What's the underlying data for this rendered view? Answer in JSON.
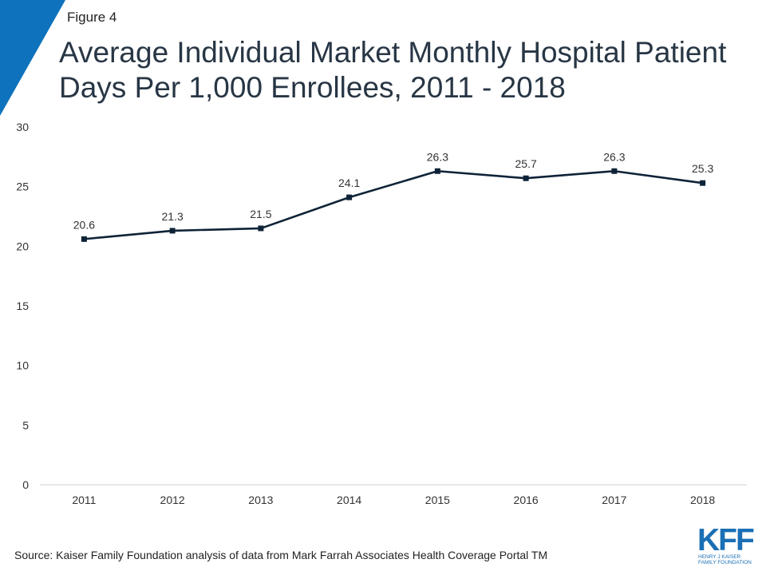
{
  "header": {
    "figure_label": "Figure 4",
    "title_line1": "Average Individual Market Monthly Hospital Patient",
    "title_line2": "Days Per 1,000 Enrollees, 2011 - 2018"
  },
  "chart_data": {
    "type": "line",
    "title": "Average Individual Market Monthly Hospital Patient Days Per 1,000 Enrollees, 2011 - 2018",
    "xlabel": "",
    "ylabel": "",
    "categories": [
      "2011",
      "2012",
      "2013",
      "2014",
      "2015",
      "2016",
      "2017",
      "2018"
    ],
    "series": [
      {
        "values": [
          20.6,
          21.3,
          21.5,
          24.1,
          26.3,
          25.7,
          26.3,
          25.3
        ],
        "labels": [
          "20.6",
          "21.3",
          "21.5",
          "24.1",
          "26.3",
          "25.7",
          "26.3",
          "25.3"
        ]
      }
    ],
    "ylim": [
      0,
      30
    ],
    "yticks": [
      0,
      5,
      10,
      15,
      20,
      25,
      30
    ],
    "grid": false,
    "legend": "none",
    "line_color": "#0f2338"
  },
  "footer": {
    "source": "Source: Kaiser Family Foundation analysis of data from Mark Farrah Associates Health Coverage Portal TM"
  },
  "logo": {
    "letters": "KFF",
    "line1": "HENRY J KAISER",
    "line2": "FAMILY FOUNDATION"
  },
  "colors": {
    "accent": "#0e72bc",
    "title": "#283645",
    "logo": "#1a6fb5"
  }
}
